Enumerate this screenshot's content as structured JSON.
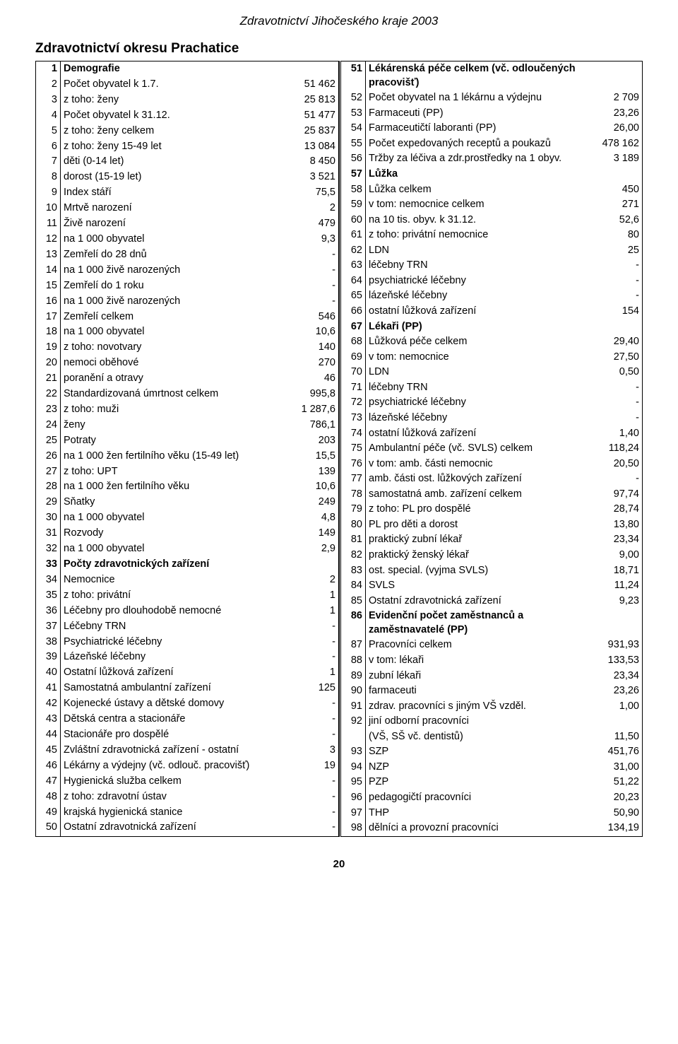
{
  "doc_header": "Zdravotnictví Jihočeského kraje 2003",
  "section_title": "Zdravotnictví okresu Prachatice",
  "page_number": "20",
  "left": [
    {
      "n": "1",
      "label": "Demografie",
      "val": "",
      "bold": true,
      "ind": 0
    },
    {
      "n": "2",
      "label": "Počet obyvatel k 1.7.",
      "val": "51 462",
      "ind": 0
    },
    {
      "n": "3",
      "label": "z toho: ženy",
      "val": "25 813",
      "ind": 1
    },
    {
      "n": "4",
      "label": "Počet obyvatel k 31.12.",
      "val": "51 477",
      "ind": 0
    },
    {
      "n": "5",
      "label": "z toho: ženy celkem",
      "val": "25 837",
      "ind": 1
    },
    {
      "n": "6",
      "label": "z toho: ženy 15-49 let",
      "val": "13 084",
      "ind": 3
    },
    {
      "n": "7",
      "label": "děti (0-14 let)",
      "val": "8 450",
      "ind": 3
    },
    {
      "n": "8",
      "label": "dorost (15-19 let)",
      "val": "3 521",
      "ind": 3
    },
    {
      "n": "9",
      "label": "Index stáří",
      "val": "75,5",
      "ind": 0
    },
    {
      "n": "10",
      "label": "Mrtvě narození",
      "val": "2",
      "ind": 0
    },
    {
      "n": "11",
      "label": "Živě narození",
      "val": "479",
      "ind": 0
    },
    {
      "n": "12",
      "label": "na 1 000 obyvatel",
      "val": "9,3",
      "ind": 1
    },
    {
      "n": "13",
      "label": "Zemřelí do 28 dnů",
      "val": "-",
      "ind": 0
    },
    {
      "n": "14",
      "label": "na 1 000 živě narozených",
      "val": "-",
      "ind": 1
    },
    {
      "n": "15",
      "label": "Zemřelí do 1 roku",
      "val": "-",
      "ind": 0
    },
    {
      "n": "16",
      "label": "na 1 000 živě narozených",
      "val": "-",
      "ind": 1
    },
    {
      "n": "17",
      "label": "Zemřelí celkem",
      "val": "546",
      "ind": 0
    },
    {
      "n": "18",
      "label": "na 1 000 obyvatel",
      "val": "10,6",
      "ind": 1
    },
    {
      "n": "19",
      "label": "z toho: novotvary",
      "val": "140",
      "ind": 1
    },
    {
      "n": "20",
      "label": "nemoci oběhové",
      "val": "270",
      "ind": 3
    },
    {
      "n": "21",
      "label": "poranění a otravy",
      "val": "46",
      "ind": 3
    },
    {
      "n": "22",
      "label": "Standardizovaná úmrtnost celkem",
      "val": "995,8",
      "ind": 0
    },
    {
      "n": "23",
      "label": "z toho: muži",
      "val": "1 287,6",
      "ind": 1
    },
    {
      "n": "24",
      "label": "ženy",
      "val": "786,1",
      "ind": 3
    },
    {
      "n": "25",
      "label": "Potraty",
      "val": "203",
      "ind": 0
    },
    {
      "n": "26",
      "label": "na 1 000 žen fertilního věku (15-49 let)",
      "val": "15,5",
      "ind": 1
    },
    {
      "n": "27",
      "label": "z toho: UPT",
      "val": "139",
      "ind": 1
    },
    {
      "n": "28",
      "label": "na 1 000 žen fertilního věku",
      "val": "10,6",
      "ind": 3
    },
    {
      "n": "29",
      "label": "Sňatky",
      "val": "249",
      "ind": 0
    },
    {
      "n": "30",
      "label": "na 1 000 obyvatel",
      "val": "4,8",
      "ind": 1
    },
    {
      "n": "31",
      "label": "Rozvody",
      "val": "149",
      "ind": 0
    },
    {
      "n": "32",
      "label": "na 1 000 obyvatel",
      "val": "2,9",
      "ind": 1
    },
    {
      "n": "33",
      "label": "Počty zdravotnických zařízení",
      "val": "",
      "bold": true,
      "ind": 0
    },
    {
      "n": "34",
      "label": "Nemocnice",
      "val": "2",
      "ind": 0
    },
    {
      "n": "35",
      "label": "z toho: privátní",
      "val": "1",
      "ind": 1
    },
    {
      "n": "36",
      "label": "Léčebny pro dlouhodobě nemocné",
      "val": "1",
      "ind": 0
    },
    {
      "n": "37",
      "label": "Léčebny TRN",
      "val": "-",
      "ind": 0
    },
    {
      "n": "38",
      "label": "Psychiatrické léčebny",
      "val": "-",
      "ind": 0
    },
    {
      "n": "39",
      "label": "Lázeňské léčebny",
      "val": "-",
      "ind": 0
    },
    {
      "n": "40",
      "label": "Ostatní lůžková zařízení",
      "val": "1",
      "ind": 0
    },
    {
      "n": "41",
      "label": "Samostatná ambulantní zařízení",
      "val": "125",
      "ind": 0
    },
    {
      "n": "42",
      "label": "Kojenecké ústavy a dětské domovy",
      "val": "-",
      "ind": 0
    },
    {
      "n": "43",
      "label": "Dětská centra a stacionáře",
      "val": "-",
      "ind": 0
    },
    {
      "n": "44",
      "label": "Stacionáře pro dospělé",
      "val": "-",
      "ind": 0
    },
    {
      "n": "45",
      "label": "Zvláštní zdravotnická zařízení - ostatní",
      "val": "3",
      "ind": 0
    },
    {
      "n": "46",
      "label": "Lékárny a výdejny (vč. odlouč. pracovišť)",
      "val": "19",
      "ind": 0
    },
    {
      "n": "47",
      "label": "Hygienická služba celkem",
      "val": "-",
      "ind": 0
    },
    {
      "n": "48",
      "label": "z toho: zdravotní ústav",
      "val": "-",
      "ind": 1
    },
    {
      "n": "49",
      "label": "krajská hygienická stanice",
      "val": "-",
      "ind": 3
    },
    {
      "n": "50",
      "label": "Ostatní zdravotnická zařízení",
      "val": "-",
      "ind": 0
    }
  ],
  "right": [
    {
      "n": "51",
      "label": "Lékárenská péče celkem (vč. odloučených pracovišť)",
      "val": "",
      "bold": true,
      "ind": 0
    },
    {
      "n": "52",
      "label": "Počet obyvatel na 1 lékárnu a výdejnu",
      "val": "2 709",
      "ind": 0
    },
    {
      "n": "53",
      "label": "Farmaceuti (PP)",
      "val": "23,26",
      "ind": 0
    },
    {
      "n": "54",
      "label": "Farmaceutičtí laboranti (PP)",
      "val": "26,00",
      "ind": 0
    },
    {
      "n": "55",
      "label": "Počet expedovaných receptů a poukazů",
      "val": "478 162",
      "ind": 0
    },
    {
      "n": "56",
      "label": "Tržby za léčiva a zdr.prostředky na 1 obyv.",
      "val": "3 189",
      "ind": 0
    },
    {
      "n": "57",
      "label": "Lůžka",
      "val": "",
      "bold": true,
      "ind": 0
    },
    {
      "n": "58",
      "label": "Lůžka celkem",
      "val": "450",
      "ind": 0
    },
    {
      "n": "59",
      "label": "v tom: nemocnice celkem",
      "val": "271",
      "ind": 0
    },
    {
      "n": "60",
      "label": "na 10 tis. obyv. k 31.12.",
      "val": "52,6",
      "ind": 3
    },
    {
      "n": "61",
      "label": "z toho: privátní nemocnice",
      "val": "80",
      "ind": 3
    },
    {
      "n": "62",
      "label": "LDN",
      "val": "25",
      "ind": 2
    },
    {
      "n": "63",
      "label": "léčebny TRN",
      "val": "-",
      "ind": 2
    },
    {
      "n": "64",
      "label": "psychiatrické léčebny",
      "val": "-",
      "ind": 2
    },
    {
      "n": "65",
      "label": "lázeňské léčebny",
      "val": "-",
      "ind": 2
    },
    {
      "n": "66",
      "label": "ostatní lůžková zařízení",
      "val": "154",
      "ind": 2
    },
    {
      "n": "67",
      "label": "Lékaři (PP)",
      "val": "",
      "bold": true,
      "ind": 0
    },
    {
      "n": "68",
      "label": "Lůžková péče celkem",
      "val": "29,40",
      "ind": 0
    },
    {
      "n": "69",
      "label": "v tom: nemocnice",
      "val": "27,50",
      "ind": 0
    },
    {
      "n": "70",
      "label": "LDN",
      "val": "0,50",
      "ind": 2
    },
    {
      "n": "71",
      "label": "léčebny TRN",
      "val": "-",
      "ind": 2
    },
    {
      "n": "72",
      "label": "psychiatrické léčebny",
      "val": "-",
      "ind": 2
    },
    {
      "n": "73",
      "label": "lázeňské léčebny",
      "val": "-",
      "ind": 2
    },
    {
      "n": "74",
      "label": "ostatní lůžková zařízení",
      "val": "1,40",
      "ind": 2
    },
    {
      "n": "75",
      "label": "Ambulantní péče (vč. SVLS) celkem",
      "val": "118,24",
      "ind": 0
    },
    {
      "n": "76",
      "label": "v tom: amb. části nemocnic",
      "val": "20,50",
      "ind": 0
    },
    {
      "n": "77",
      "label": "amb. části ost. lůžkových zařízení",
      "val": "-",
      "ind": 2
    },
    {
      "n": "78",
      "label": "samostatná amb. zařízení celkem",
      "val": "97,74",
      "ind": 2
    },
    {
      "n": "79",
      "label": "z toho: PL pro dospělé",
      "val": "28,74",
      "ind": 2
    },
    {
      "n": "80",
      "label": "PL pro děti a dorost",
      "val": "13,80",
      "ind": 4
    },
    {
      "n": "81",
      "label": "praktický zubní lékař",
      "val": "23,34",
      "ind": 4
    },
    {
      "n": "82",
      "label": "praktický ženský lékař",
      "val": "9,00",
      "ind": 4
    },
    {
      "n": "83",
      "label": "ost. special. (vyjma SVLS)",
      "val": "18,71",
      "ind": 4
    },
    {
      "n": "84",
      "label": "SVLS",
      "val": "11,24",
      "ind": 0
    },
    {
      "n": "85",
      "label": "Ostatní zdravotnická zařízení",
      "val": "9,23",
      "ind": 0
    },
    {
      "n": "86",
      "label": "Evidenční počet zaměstnanců a zaměstnavatelé (PP)",
      "val": "",
      "bold": true,
      "ind": 0
    },
    {
      "n": "87",
      "label": "Pracovníci celkem",
      "val": "931,93",
      "ind": 0
    },
    {
      "n": "88",
      "label": "v tom: lékaři",
      "val": "133,53",
      "ind": 0
    },
    {
      "n": "89",
      "label": "zubní lékaři",
      "val": "23,34",
      "ind": 2
    },
    {
      "n": "90",
      "label": "farmaceuti",
      "val": "23,26",
      "ind": 2
    },
    {
      "n": "91",
      "label": "zdrav. pracovníci s jiným VŠ vzděl.",
      "val": "1,00",
      "ind": 2
    },
    {
      "n": "92",
      "label": "jiní odborní pracovníci",
      "val": "",
      "ind": 2
    },
    {
      "n": "",
      "label": "(VŠ, SŠ vč. dentistů)",
      "val": "11,50",
      "ind": 2
    },
    {
      "n": "93",
      "label": "SZP",
      "val": "451,76",
      "ind": 2
    },
    {
      "n": "94",
      "label": "NZP",
      "val": "31,00",
      "ind": 2
    },
    {
      "n": "95",
      "label": "PZP",
      "val": "51,22",
      "ind": 2
    },
    {
      "n": "96",
      "label": "pedagogičtí pracovníci",
      "val": "20,23",
      "ind": 2
    },
    {
      "n": "97",
      "label": "THP",
      "val": "50,90",
      "ind": 2
    },
    {
      "n": "98",
      "label": "dělníci a provozní pracovníci",
      "val": "134,19",
      "ind": 2
    }
  ]
}
